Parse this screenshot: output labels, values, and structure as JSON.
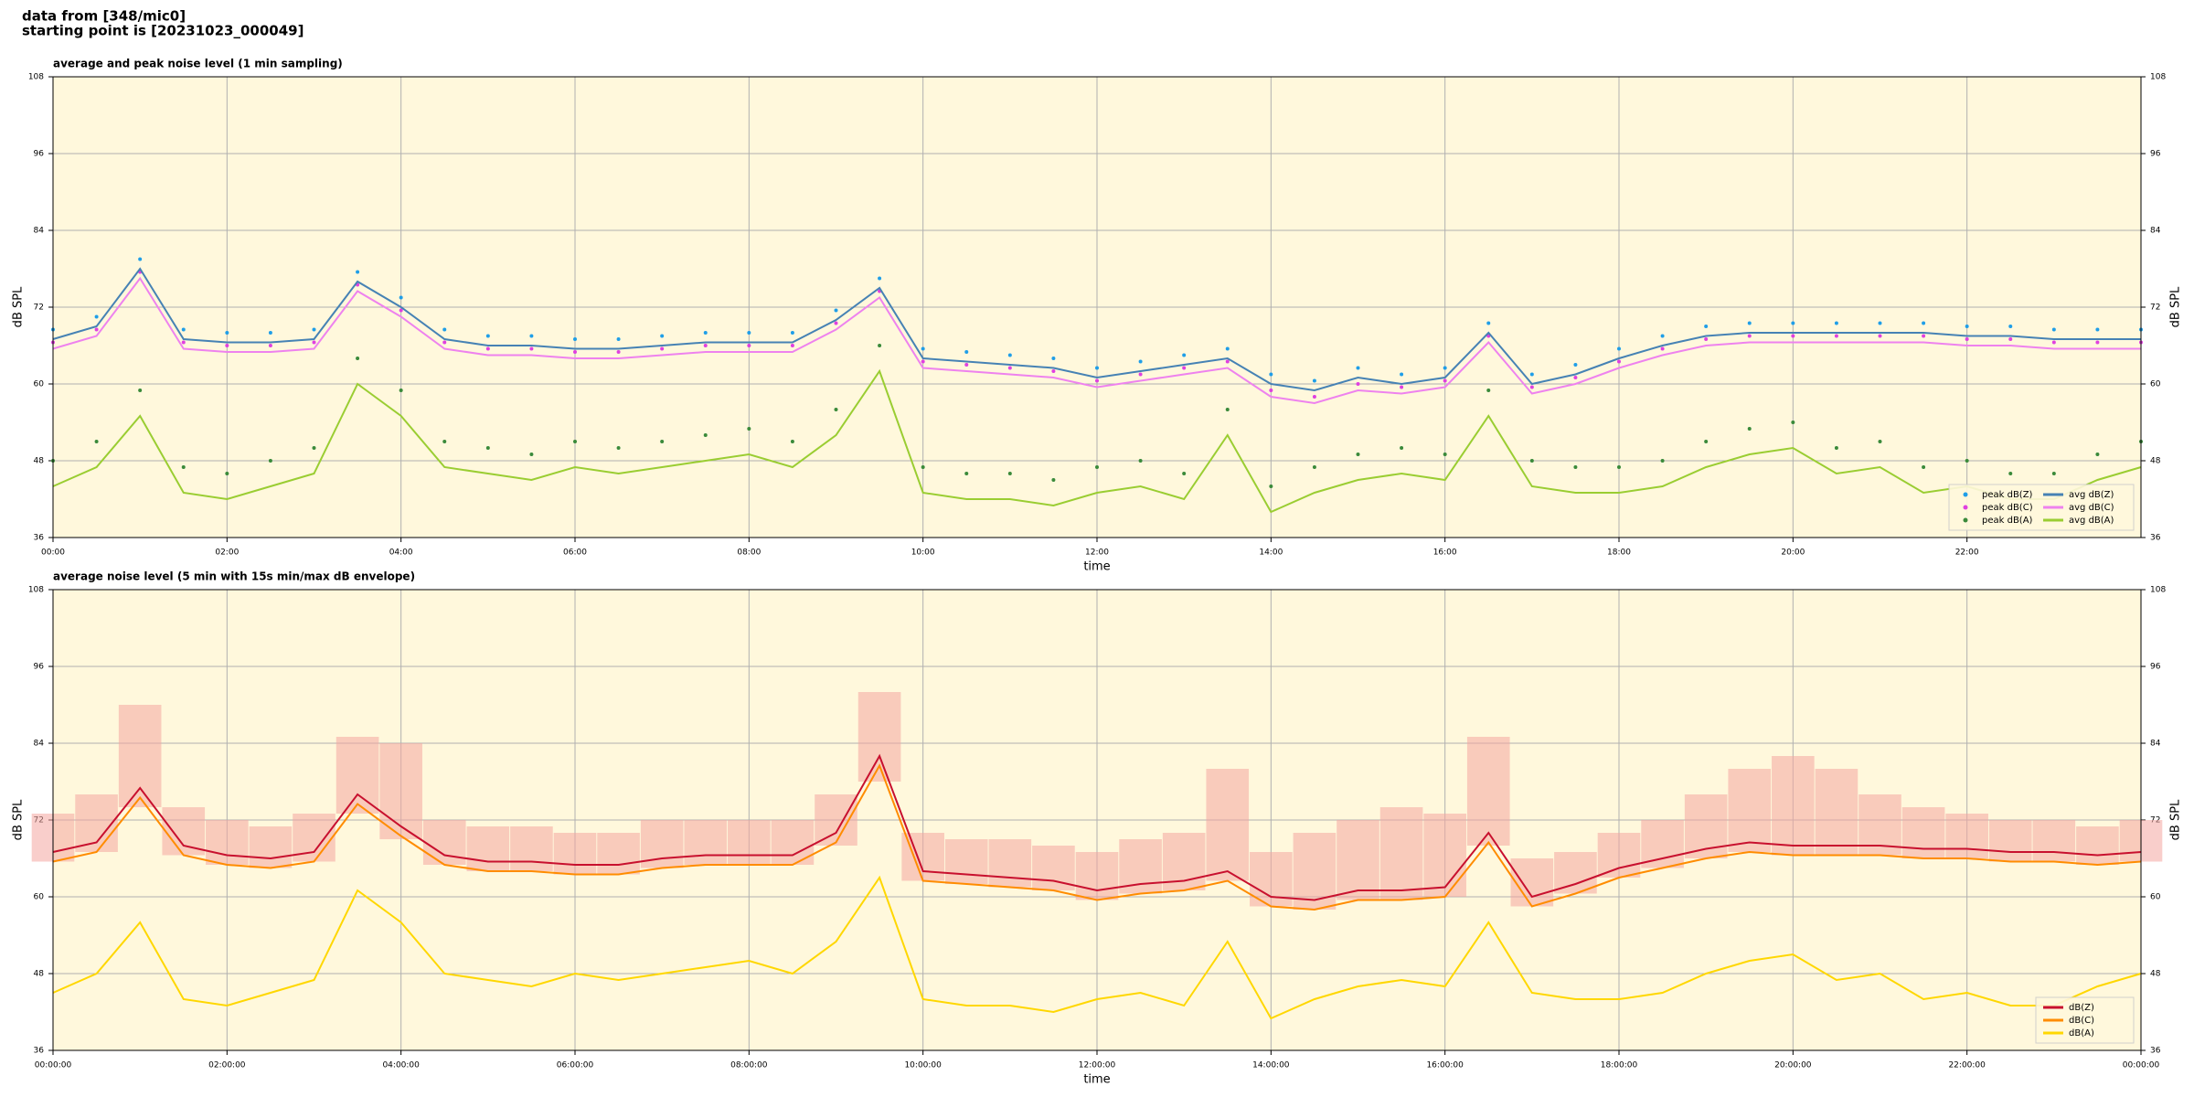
{
  "header": {
    "line1": "data from [348/mic0]",
    "line2": "starting point is [20231023_000049]"
  },
  "chart_data": [
    {
      "type": "line",
      "title": "average and peak noise level (1 min sampling)",
      "x_label": "time",
      "y_label": "dB SPL",
      "background": "#fff8dc",
      "grid": true,
      "legend": "lower right",
      "legend_columns": 2,
      "xlim": [
        0,
        24
      ],
      "ylim": [
        36,
        108
      ],
      "xticks": [
        {
          "value": 0,
          "label": "00:00"
        },
        {
          "value": 2,
          "label": "02:00"
        },
        {
          "value": 4,
          "label": "04:00"
        },
        {
          "value": 6,
          "label": "06:00"
        },
        {
          "value": 8,
          "label": "08:00"
        },
        {
          "value": 10,
          "label": "10:00"
        },
        {
          "value": 12,
          "label": "12:00"
        },
        {
          "value": 14,
          "label": "14:00"
        },
        {
          "value": 16,
          "label": "16:00"
        },
        {
          "value": 18,
          "label": "18:00"
        },
        {
          "value": 20,
          "label": "20:00"
        },
        {
          "value": 22,
          "label": "22:00"
        }
      ],
      "yticks": [
        36,
        48,
        60,
        72,
        84,
        96,
        108
      ],
      "x": [
        0,
        0.5,
        1,
        1.5,
        2,
        2.5,
        3,
        3.5,
        4,
        4.5,
        5,
        5.5,
        6,
        6.5,
        7,
        7.5,
        8,
        8.5,
        9,
        9.5,
        10,
        10.5,
        11,
        11.5,
        12,
        12.5,
        13,
        13.5,
        14,
        14.5,
        15,
        15.5,
        16,
        16.5,
        17,
        17.5,
        18,
        18.5,
        19,
        19.5,
        20,
        20.5,
        21,
        21.5,
        22,
        22.5,
        23,
        23.5,
        24
      ],
      "series": [
        {
          "name": "peak dB(Z)",
          "style": "points",
          "color": "#1f9ee8",
          "values": [
            68.5,
            70.5,
            79.5,
            68.5,
            68,
            68,
            68.5,
            77.5,
            73.5,
            68.5,
            67.5,
            67.5,
            67,
            67,
            67.5,
            68,
            68,
            68,
            71.5,
            76.5,
            65.5,
            65,
            64.5,
            64,
            62.5,
            63.5,
            64.5,
            65.5,
            61.5,
            60.5,
            62.5,
            61.5,
            62.5,
            69.5,
            61.5,
            63,
            65.5,
            67.5,
            69,
            69.5,
            69.5,
            69.5,
            69.5,
            69.5,
            69,
            69,
            68.5,
            68.5,
            68.5
          ]
        },
        {
          "name": "peak dB(C)",
          "style": "points",
          "color": "#e040e0",
          "values": [
            66.5,
            68.5,
            77.5,
            66.5,
            66,
            66,
            66.5,
            75.5,
            71.5,
            66.5,
            65.5,
            65.5,
            65,
            65,
            65.5,
            66,
            66,
            66,
            69.5,
            74.5,
            63.5,
            63,
            62.5,
            62,
            60.5,
            61.5,
            62.5,
            63.5,
            59,
            58,
            60,
            59.5,
            60.5,
            67.5,
            59.5,
            61,
            63.5,
            65.5,
            67,
            67.5,
            67.5,
            67.5,
            67.5,
            67.5,
            67,
            67,
            66.5,
            66.5,
            66.5
          ]
        },
        {
          "name": "peak dB(A)",
          "style": "points",
          "color": "#3a8a3a",
          "values": [
            48,
            51,
            59,
            47,
            46,
            48,
            50,
            64,
            59,
            51,
            50,
            49,
            51,
            50,
            51,
            52,
            53,
            51,
            56,
            66,
            47,
            46,
            46,
            45,
            47,
            48,
            46,
            56,
            44,
            47,
            49,
            50,
            49,
            59,
            48,
            47,
            47,
            48,
            51,
            53,
            54,
            50,
            51,
            47,
            48,
            46,
            46,
            49,
            51
          ]
        },
        {
          "name": "avg dB(Z)",
          "style": "line",
          "color": "#4682b4",
          "values": [
            67,
            69,
            78,
            67,
            66.5,
            66.5,
            67,
            76,
            72,
            67,
            66,
            66,
            65.5,
            65.5,
            66,
            66.5,
            66.5,
            66.5,
            70,
            75,
            64,
            63.5,
            63,
            62.5,
            61,
            62,
            63,
            64,
            60,
            59,
            61,
            60,
            61,
            68,
            60,
            61.5,
            64,
            66,
            67.5,
            68,
            68,
            68,
            68,
            68,
            67.5,
            67.5,
            67,
            67,
            67
          ]
        },
        {
          "name": "avg dB(C)",
          "style": "line",
          "color": "#ee82ee",
          "values": [
            65.5,
            67.5,
            76.5,
            65.5,
            65,
            65,
            65.5,
            74.5,
            70.5,
            65.5,
            64.5,
            64.5,
            64,
            64,
            64.5,
            65,
            65,
            65,
            68.5,
            73.5,
            62.5,
            62,
            61.5,
            61,
            59.5,
            60.5,
            61.5,
            62.5,
            58,
            57,
            59,
            58.5,
            59.5,
            66.5,
            58.5,
            60,
            62.5,
            64.5,
            66,
            66.5,
            66.5,
            66.5,
            66.5,
            66.5,
            66,
            66,
            65.5,
            65.5,
            65.5
          ]
        },
        {
          "name": "avg dB(A)",
          "style": "line",
          "color": "#9acd32",
          "values": [
            44,
            47,
            55,
            43,
            42,
            44,
            46,
            60,
            55,
            47,
            46,
            45,
            47,
            46,
            47,
            48,
            49,
            47,
            52,
            62,
            43,
            42,
            42,
            41,
            43,
            44,
            42,
            52,
            40,
            43,
            45,
            46,
            45,
            55,
            44,
            43,
            43,
            44,
            47,
            49,
            50,
            46,
            47,
            43,
            44,
            42,
            42,
            45,
            47
          ]
        }
      ]
    },
    {
      "type": "line",
      "title": "average noise level (5 min with 15s min/max dB envelope)",
      "x_label": "time",
      "y_label": "dB SPL",
      "background": "#fff8dc",
      "grid": true,
      "legend": "lower right",
      "legend_columns": 1,
      "xlim": [
        0,
        24
      ],
      "ylim": [
        36,
        108
      ],
      "xticks": [
        {
          "value": 0,
          "label": "00:00:00"
        },
        {
          "value": 2,
          "label": "02:00:00"
        },
        {
          "value": 4,
          "label": "04:00:00"
        },
        {
          "value": 6,
          "label": "06:00:00"
        },
        {
          "value": 8,
          "label": "08:00:00"
        },
        {
          "value": 10,
          "label": "10:00:00"
        },
        {
          "value": 12,
          "label": "12:00:00"
        },
        {
          "value": 14,
          "label": "14:00:00"
        },
        {
          "value": 16,
          "label": "16:00:00"
        },
        {
          "value": 18,
          "label": "18:00:00"
        },
        {
          "value": 20,
          "label": "20:00:00"
        },
        {
          "value": 22,
          "label": "22:00:00"
        },
        {
          "value": 24,
          "label": "00:00:00"
        }
      ],
      "yticks": [
        36,
        48,
        60,
        72,
        84,
        96,
        108
      ],
      "x": [
        0,
        0.5,
        1,
        1.5,
        2,
        2.5,
        3,
        3.5,
        4,
        4.5,
        5,
        5.5,
        6,
        6.5,
        7,
        7.5,
        8,
        8.5,
        9,
        9.5,
        10,
        10.5,
        11,
        11.5,
        12,
        12.5,
        13,
        13.5,
        14,
        14.5,
        15,
        15.5,
        16,
        16.5,
        17,
        17.5,
        18,
        18.5,
        19,
        19.5,
        20,
        20.5,
        21,
        21.5,
        22,
        22.5,
        23,
        23.5,
        24
      ],
      "envelope_color": "#f4a6a0",
      "envelope_min": [
        65.5,
        67,
        74,
        66.5,
        65,
        64.5,
        65.5,
        73,
        69,
        65,
        64,
        64,
        63.5,
        63.5,
        64.5,
        65,
        65,
        65,
        68,
        78,
        62.5,
        62,
        61.5,
        61,
        59.5,
        60.5,
        61,
        62.5,
        58.5,
        58,
        59.5,
        59.5,
        60,
        68,
        58.5,
        60.5,
        63,
        64.5,
        66,
        67,
        66.5,
        66.5,
        66.5,
        66,
        66,
        65.5,
        65.5,
        65,
        65.5
      ],
      "envelope_max": [
        73,
        76,
        90,
        74,
        72,
        71,
        73,
        85,
        84,
        72,
        71,
        71,
        70,
        70,
        72,
        72,
        72,
        72,
        76,
        92,
        70,
        69,
        69,
        68,
        67,
        69,
        70,
        80,
        67,
        70,
        72,
        74,
        73,
        85,
        66,
        67,
        70,
        72,
        76,
        80,
        82,
        80,
        76,
        74,
        73,
        72,
        72,
        71,
        72
      ],
      "series": [
        {
          "name": "dB(Z)",
          "style": "line",
          "color": "#c8102e",
          "values": [
            67,
            68.5,
            77,
            68,
            66.5,
            66,
            67,
            76,
            71,
            66.5,
            65.5,
            65.5,
            65,
            65,
            66,
            66.5,
            66.5,
            66.5,
            70,
            82,
            64,
            63.5,
            63,
            62.5,
            61,
            62,
            62.5,
            64,
            60,
            59.5,
            61,
            61,
            61.5,
            70,
            60,
            62,
            64.5,
            66,
            67.5,
            68.5,
            68,
            68,
            68,
            67.5,
            67.5,
            67,
            67,
            66.5,
            67
          ]
        },
        {
          "name": "dB(C)",
          "style": "line",
          "color": "#ff8c00",
          "values": [
            65.5,
            67,
            75.5,
            66.5,
            65,
            64.5,
            65.5,
            74.5,
            69.5,
            65,
            64,
            64,
            63.5,
            63.5,
            64.5,
            65,
            65,
            65,
            68.5,
            80.5,
            62.5,
            62,
            61.5,
            61,
            59.5,
            60.5,
            61,
            62.5,
            58.5,
            58,
            59.5,
            59.5,
            60,
            68.5,
            58.5,
            60.5,
            63,
            64.5,
            66,
            67,
            66.5,
            66.5,
            66.5,
            66,
            66,
            65.5,
            65.5,
            65,
            65.5
          ]
        },
        {
          "name": "dB(A)",
          "style": "line",
          "color": "#ffd700",
          "values": [
            45,
            48,
            56,
            44,
            43,
            45,
            47,
            61,
            56,
            48,
            47,
            46,
            48,
            47,
            48,
            49,
            50,
            48,
            53,
            63,
            44,
            43,
            43,
            42,
            44,
            45,
            43,
            53,
            41,
            44,
            46,
            47,
            46,
            56,
            45,
            44,
            44,
            45,
            48,
            50,
            51,
            47,
            48,
            44,
            45,
            43,
            43,
            46,
            48
          ]
        }
      ]
    }
  ]
}
